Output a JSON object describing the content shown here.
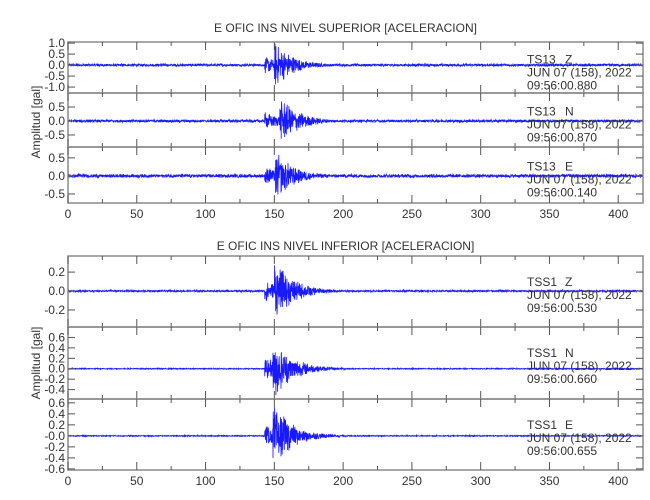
{
  "chart_data": [
    {
      "type": "line",
      "title": "E OFIC INS NIVEL SUPERIOR [ACELERACION]",
      "ylabel": "Amplitud  [gal]",
      "xlabel": "",
      "xlim": [
        0,
        418
      ],
      "xticks": [
        "0",
        "50",
        "100",
        "150",
        "200",
        "250",
        "300",
        "350",
        "400"
      ],
      "grid": false,
      "line_color": "#0000ff",
      "panels": [
        {
          "station": "TS13",
          "component": "Z",
          "date": "JUN 07 (158), 2022",
          "time": "09:56:00.880",
          "ylim": [
            -1.27,
            1.05
          ],
          "yticks": [
            "1.0",
            "0.5",
            "0.0",
            "-0.5",
            "-1.0"
          ],
          "ytick_values": [
            1.0,
            0.5,
            0.0,
            -0.5,
            -1.0
          ],
          "onset": 143,
          "peak_time": 151,
          "peak_amplitude": 1.1,
          "noise_amplitude": 0.06
        },
        {
          "station": "TS13",
          "component": "N",
          "date": "JUN 07 (158), 2022",
          "time": "09:56:00.870",
          "ylim": [
            -0.93,
            1.0
          ],
          "yticks": [
            "0.5",
            "0.0",
            "-0.5"
          ],
          "ytick_values": [
            0.5,
            0.0,
            -0.5
          ],
          "onset": 143,
          "peak_time": 155,
          "peak_amplitude": 0.9,
          "noise_amplitude": 0.05
        },
        {
          "station": "TS13",
          "component": "E",
          "date": "JUN 07 (158), 2022",
          "time": "09:56:00.140",
          "ylim": [
            -0.75,
            0.8
          ],
          "yticks": [
            "0.5",
            "0.0",
            "-0.5"
          ],
          "ytick_values": [
            0.5,
            0.0,
            -0.5
          ],
          "onset": 143,
          "peak_time": 151,
          "peak_amplitude": 0.75,
          "noise_amplitude": 0.05
        }
      ]
    },
    {
      "type": "line",
      "title": "E OFIC INS NIVEL INFERIOR [ACELERACION]",
      "ylabel": "Amplitud  [gal]",
      "xlabel": "",
      "xlim": [
        0,
        418
      ],
      "xticks": [
        "0",
        "50",
        "100",
        "150",
        "200",
        "250",
        "300",
        "350",
        "400"
      ],
      "grid": false,
      "line_color": "#0000ff",
      "panels": [
        {
          "station": "TSS1",
          "component": "Z",
          "date": "JUN 07 (158), 2022",
          "time": "09:56:00.530",
          "ylim": [
            -0.38,
            0.37
          ],
          "yticks": [
            "0.2",
            "0.0",
            "-0.2"
          ],
          "ytick_values": [
            0.2,
            0.0,
            -0.2
          ],
          "onset": 143,
          "peak_time": 151,
          "peak_amplitude": 0.35,
          "noise_amplitude": 0.01
        },
        {
          "station": "TSS1",
          "component": "N",
          "date": "JUN 07 (158), 2022",
          "time": "09:56:00.660",
          "ylim": [
            -0.58,
            0.8
          ],
          "yticks": [
            "0.6",
            "0.4",
            "0.2",
            "0.0",
            "-0.2",
            "-0.4"
          ],
          "ytick_values": [
            0.6,
            0.4,
            0.2,
            0.0,
            -0.2,
            -0.4
          ],
          "onset": 143,
          "peak_time": 150,
          "peak_amplitude": 0.65,
          "noise_amplitude": 0.01
        },
        {
          "station": "TSS1",
          "component": "E",
          "date": "JUN 07 (158), 2022",
          "time": "09:56:00.655",
          "ylim": [
            -0.62,
            0.67
          ],
          "yticks": [
            "0.6",
            "0.4",
            "0.2",
            "-0.0",
            "-0.2",
            "-0.4",
            "-0.6"
          ],
          "ytick_values": [
            0.6,
            0.4,
            0.2,
            0.0,
            -0.2,
            -0.4,
            -0.6
          ],
          "onset": 143,
          "peak_time": 150,
          "peak_amplitude": 0.62,
          "noise_amplitude": 0.01
        }
      ]
    }
  ]
}
